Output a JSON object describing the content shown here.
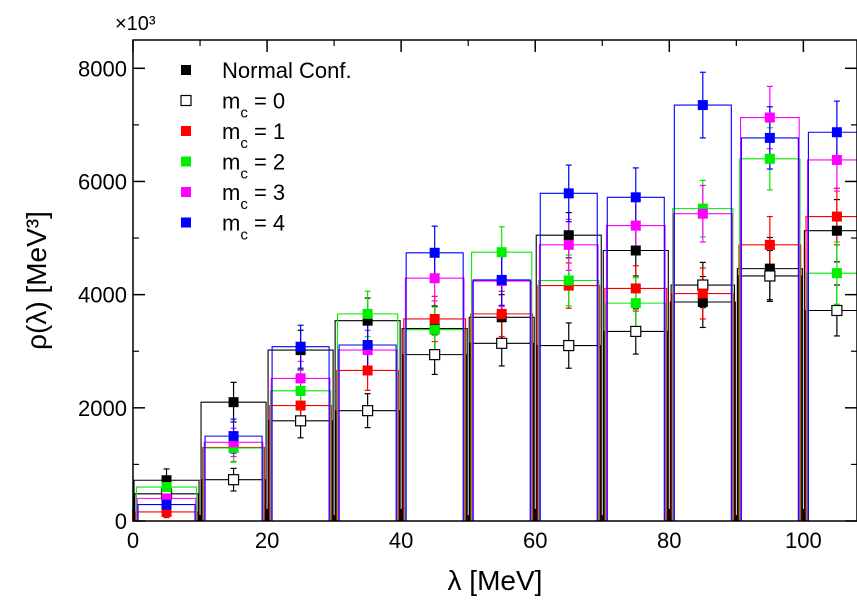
{
  "chart_data": {
    "type": "bar",
    "subtype": "histogram-with-errorbars",
    "xlabel": "λ [MeV]",
    "ylabel": "ρ(λ) [MeV³]",
    "y_multiplier": "×10³",
    "xlim": [
      0,
      108
    ],
    "ylim": [
      0,
      8500
    ],
    "xticks": [
      0,
      20,
      40,
      60,
      80,
      100
    ],
    "yticks": [
      0,
      2000,
      4000,
      6000,
      8000
    ],
    "grid": false,
    "legend_position": "top-left",
    "x": [
      5,
      15,
      25,
      35,
      45,
      55,
      65,
      75,
      85,
      95,
      105
    ],
    "bin_width": 10,
    "series": [
      {
        "name": "Normal Conf.",
        "color": "#000000",
        "marker": "filled-square",
        "values": [
          720,
          2100,
          3020,
          3540,
          3400,
          3600,
          5050,
          4780,
          3870,
          4460,
          5130
        ],
        "errors": [
          200,
          350,
          350,
          400,
          400,
          400,
          400,
          450,
          450,
          550,
          550
        ]
      },
      {
        "name": "m_c = 0",
        "color": "#000000",
        "marker": "open-square",
        "values": [
          480,
          730,
          1770,
          1950,
          2940,
          3140,
          3100,
          3350,
          4170,
          4330,
          3720
        ],
        "errors": [
          130,
          200,
          300,
          300,
          350,
          400,
          400,
          400,
          400,
          450,
          450
        ]
      },
      {
        "name": "m_c = 1",
        "color": "#ff0000",
        "marker": "filled-square",
        "values": [
          160,
          1300,
          2040,
          2660,
          3570,
          3660,
          4160,
          4110,
          4020,
          4880,
          5380
        ],
        "errors": [
          100,
          250,
          300,
          350,
          400,
          400,
          400,
          400,
          450,
          500,
          500
        ]
      },
      {
        "name": "m_c = 2",
        "color": "#00ee00",
        "marker": "filled-square",
        "values": [
          600,
          1290,
          2300,
          3660,
          3380,
          4750,
          4250,
          3850,
          5520,
          6400,
          4380
        ],
        "errors": [
          150,
          250,
          300,
          400,
          400,
          450,
          450,
          450,
          500,
          550,
          550
        ]
      },
      {
        "name": "m_c = 3",
        "color": "#ff00ff",
        "marker": "filled-square",
        "values": [
          400,
          1390,
          2520,
          3020,
          4290,
          4240,
          4880,
          5220,
          5430,
          7130,
          6380
        ],
        "errors": [
          150,
          250,
          300,
          350,
          400,
          450,
          450,
          500,
          500,
          550,
          550
        ]
      },
      {
        "name": "m_c = 4",
        "color": "#0000ff",
        "marker": "filled-square",
        "values": [
          290,
          1500,
          3080,
          3110,
          4740,
          4260,
          5790,
          5720,
          7350,
          6770,
          6870
        ],
        "errors": [
          150,
          300,
          380,
          400,
          470,
          450,
          500,
          520,
          580,
          550,
          550
        ]
      }
    ]
  }
}
